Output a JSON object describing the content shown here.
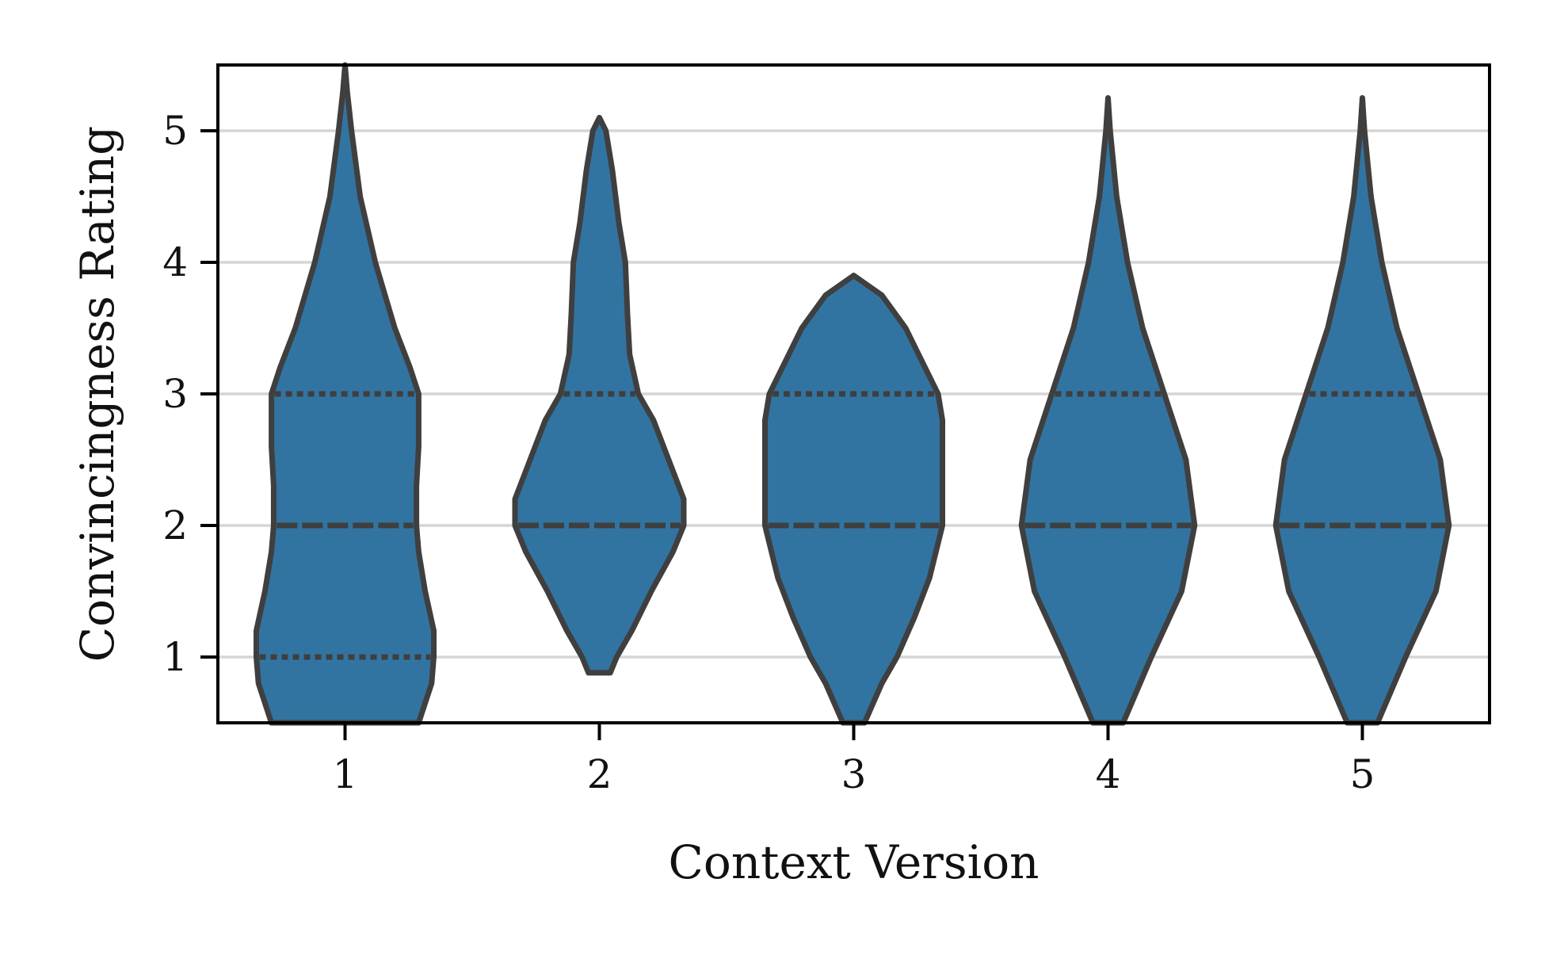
{
  "chart_data": {
    "type": "violin",
    "title": "",
    "xlabel": "Context Version",
    "ylabel": "Convincingness Rating",
    "categories": [
      "1",
      "2",
      "3",
      "4",
      "5"
    ],
    "yticks": [
      1,
      2,
      3,
      4,
      5
    ],
    "ylim": [
      0.5,
      5.5
    ],
    "grid": "horizontal",
    "legend": "none",
    "colors": {
      "fill": "#3274a1",
      "outline": "#3f3f3f",
      "grid": "#d5d5d5",
      "axes": "#000000"
    },
    "violins": [
      {
        "category": "1",
        "quartiles": [
          1,
          2,
          3
        ],
        "density": [
          [
            0.5,
            0.34
          ],
          [
            0.8,
            0.4
          ],
          [
            1.0,
            0.41
          ],
          [
            1.2,
            0.41
          ],
          [
            1.5,
            0.37
          ],
          [
            1.8,
            0.34
          ],
          [
            2.0,
            0.33
          ],
          [
            2.3,
            0.33
          ],
          [
            2.6,
            0.34
          ],
          [
            3.0,
            0.34
          ],
          [
            3.2,
            0.3
          ],
          [
            3.5,
            0.23
          ],
          [
            4.0,
            0.14
          ],
          [
            4.5,
            0.07
          ],
          [
            5.0,
            0.03
          ],
          [
            5.3,
            0.01
          ],
          [
            5.5,
            0.0
          ]
        ]
      },
      {
        "category": "2",
        "quartiles": [
          2,
          2,
          3
        ],
        "density": [
          [
            0.88,
            0.05
          ],
          [
            1.0,
            0.08
          ],
          [
            1.2,
            0.15
          ],
          [
            1.5,
            0.24
          ],
          [
            1.8,
            0.34
          ],
          [
            2.0,
            0.39
          ],
          [
            2.2,
            0.39
          ],
          [
            2.5,
            0.32
          ],
          [
            2.8,
            0.25
          ],
          [
            3.0,
            0.18
          ],
          [
            3.3,
            0.14
          ],
          [
            3.6,
            0.13
          ],
          [
            4.0,
            0.12
          ],
          [
            4.3,
            0.09
          ],
          [
            4.7,
            0.06
          ],
          [
            5.0,
            0.03
          ],
          [
            5.1,
            0.0
          ]
        ]
      },
      {
        "category": "3",
        "quartiles": [
          2,
          2,
          3
        ],
        "density": [
          [
            0.5,
            0.05
          ],
          [
            0.8,
            0.13
          ],
          [
            1.0,
            0.2
          ],
          [
            1.3,
            0.28
          ],
          [
            1.6,
            0.35
          ],
          [
            2.0,
            0.41
          ],
          [
            2.3,
            0.41
          ],
          [
            2.5,
            0.41
          ],
          [
            2.8,
            0.41
          ],
          [
            3.0,
            0.39
          ],
          [
            3.2,
            0.33
          ],
          [
            3.5,
            0.24
          ],
          [
            3.75,
            0.13
          ],
          [
            3.9,
            0.0
          ]
        ]
      },
      {
        "category": "4",
        "quartiles": [
          2,
          2,
          3
        ],
        "density": [
          [
            0.5,
            0.07
          ],
          [
            1.0,
            0.2
          ],
          [
            1.5,
            0.34
          ],
          [
            2.0,
            0.4
          ],
          [
            2.5,
            0.36
          ],
          [
            3.0,
            0.26
          ],
          [
            3.5,
            0.16
          ],
          [
            4.0,
            0.09
          ],
          [
            4.5,
            0.04
          ],
          [
            5.0,
            0.01
          ],
          [
            5.25,
            0.0
          ]
        ]
      },
      {
        "category": "5",
        "quartiles": [
          2,
          2,
          3
        ],
        "density": [
          [
            0.5,
            0.07
          ],
          [
            1.0,
            0.2
          ],
          [
            1.5,
            0.34
          ],
          [
            2.0,
            0.4
          ],
          [
            2.5,
            0.36
          ],
          [
            3.0,
            0.26
          ],
          [
            3.5,
            0.16
          ],
          [
            4.0,
            0.09
          ],
          [
            4.5,
            0.04
          ],
          [
            5.0,
            0.01
          ],
          [
            5.25,
            0.0
          ]
        ]
      }
    ]
  }
}
